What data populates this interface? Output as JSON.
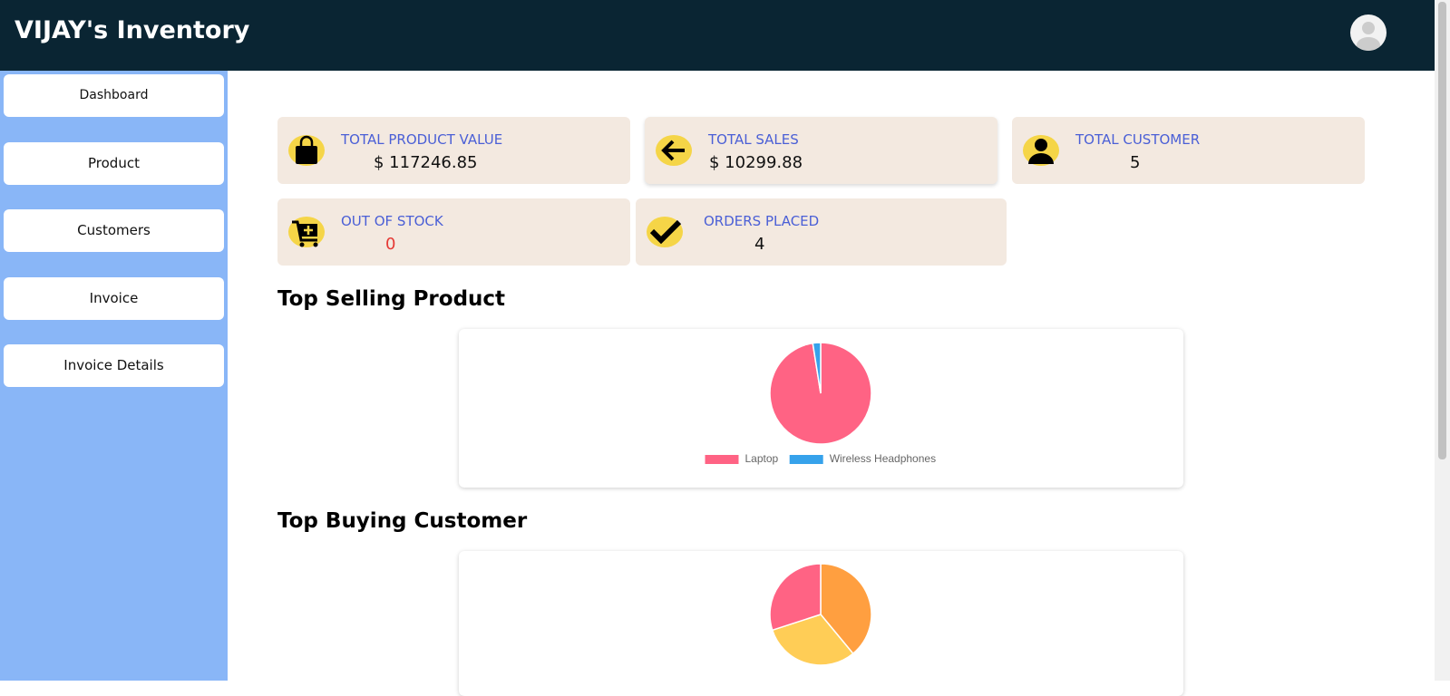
{
  "header": {
    "title": "VIJAY's Inventory"
  },
  "sidebar": {
    "items": [
      "Dashboard",
      "Product",
      "Customers",
      "Invoice",
      "Invoice Details"
    ]
  },
  "cards": [
    {
      "label": "TOTAL PRODUCT VALUE",
      "value": "$ 117246.85"
    },
    {
      "label": "TOTAL SALES",
      "value": "$ 10299.88"
    },
    {
      "label": "TOTAL CUSTOMER",
      "value": 5
    },
    {
      "label": "OUT OF STOCK",
      "value": 0
    },
    {
      "label": "ORDERS PLACED",
      "value": 4
    }
  ],
  "sections": [
    {
      "title": "Top Selling Product",
      "chart_data": {
        "type": "pie",
        "categories": [
          "Laptop",
          "Wireless Headphones"
        ],
        "values": [
          97.5,
          2.5
        ],
        "colors": [
          "#ff6384",
          "#36a2eb"
        ]
      }
    },
    {
      "title": "Top Buying Customer",
      "chart_data": {
        "type": "pie",
        "categories": [
          null,
          null,
          null
        ],
        "values": [
          39,
          31,
          30
        ],
        "colors": [
          "#ff9f40",
          "#ffcd56",
          "#ff6384"
        ]
      }
    }
  ]
}
